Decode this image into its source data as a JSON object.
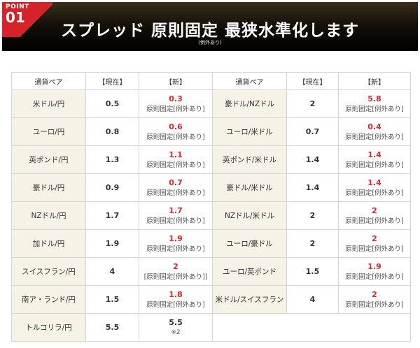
{
  "banner": {
    "point_word": "POINT",
    "point_num": "01",
    "title": "スプレッド 原則固定 最狭水準化します",
    "subtitle": "(例外あり)"
  },
  "colors": {
    "accent_red": "#e0262f",
    "pair_bg": "#f7f2e6",
    "banner_bg": "#000000"
  },
  "table": {
    "headers": [
      "通貨ペア",
      "【現在】",
      "【新】",
      "通貨ペア",
      "【現在】",
      "【新】"
    ],
    "rows": [
      {
        "l_pair": "米ドル/円",
        "l_cur": "0.5",
        "l_new": "0.3",
        "l_note": "原則固定[例外あり]",
        "r_pair": "豪ドル/NZドル",
        "r_cur": "2",
        "r_new": "5.8",
        "r_note": "原則固定[例外あり]"
      },
      {
        "l_pair": "ユーロ/円",
        "l_cur": "0.8",
        "l_new": "0.6",
        "l_note": "原則固定[例外あり]",
        "r_pair": "ユーロ/米ドル",
        "r_cur": "0.7",
        "r_new": "0.4",
        "r_note": "原則固定[例外あり]"
      },
      {
        "l_pair": "英ポンド/円",
        "l_cur": "1.3",
        "l_new": "1.1",
        "l_note": "原則固定[例外あり]",
        "r_pair": "英ポンド/米ドル",
        "r_cur": "1.4",
        "r_new": "1.4",
        "r_note": "原則固定[例外あり]"
      },
      {
        "l_pair": "豪ドル/円",
        "l_cur": "0.9",
        "l_new": "0.7",
        "l_note": "原則固定[例外あり]",
        "r_pair": "豪ドル/米ドル",
        "r_cur": "1.4",
        "r_new": "1.4",
        "r_note": "原則固定[例外あり]"
      },
      {
        "l_pair": "NZドル/円",
        "l_cur": "1.7",
        "l_new": "1.7",
        "l_note": "原則固定[例外あり]",
        "r_pair": "NZドル/米ドル",
        "r_cur": "2",
        "r_new": "2",
        "r_note": "原則固定[例外あり]"
      },
      {
        "l_pair": "加ドル/円",
        "l_cur": "1.9",
        "l_new": "1.9",
        "l_note": "原則固定[例外あり]",
        "r_pair": "ユーロ/豪ドル",
        "r_cur": "2",
        "r_new": "2",
        "r_note": "原則固定[例外あり]"
      },
      {
        "l_pair": "スイスフラン/円",
        "l_cur": "4",
        "l_new": "2",
        "l_note": "[原則固定[例外あり]]",
        "r_pair": "ユーロ/英ポンド",
        "r_cur": "1.5",
        "r_new": "1.9",
        "r_note": "原則固定[例外あり]"
      },
      {
        "l_pair": "南ア・ランド/円",
        "l_cur": "1.5",
        "l_new": "1.8",
        "l_note": "原則固定[例外あり]",
        "r_pair": "米ドル/スイスフラン",
        "r_cur": "4",
        "r_new": "2",
        "r_note": "原則固定[例外あり]"
      }
    ],
    "last_row": {
      "l_pair": "トルコリラ/円",
      "l_cur": "5.5",
      "l_new": "5.5",
      "l_note": "※2"
    }
  }
}
